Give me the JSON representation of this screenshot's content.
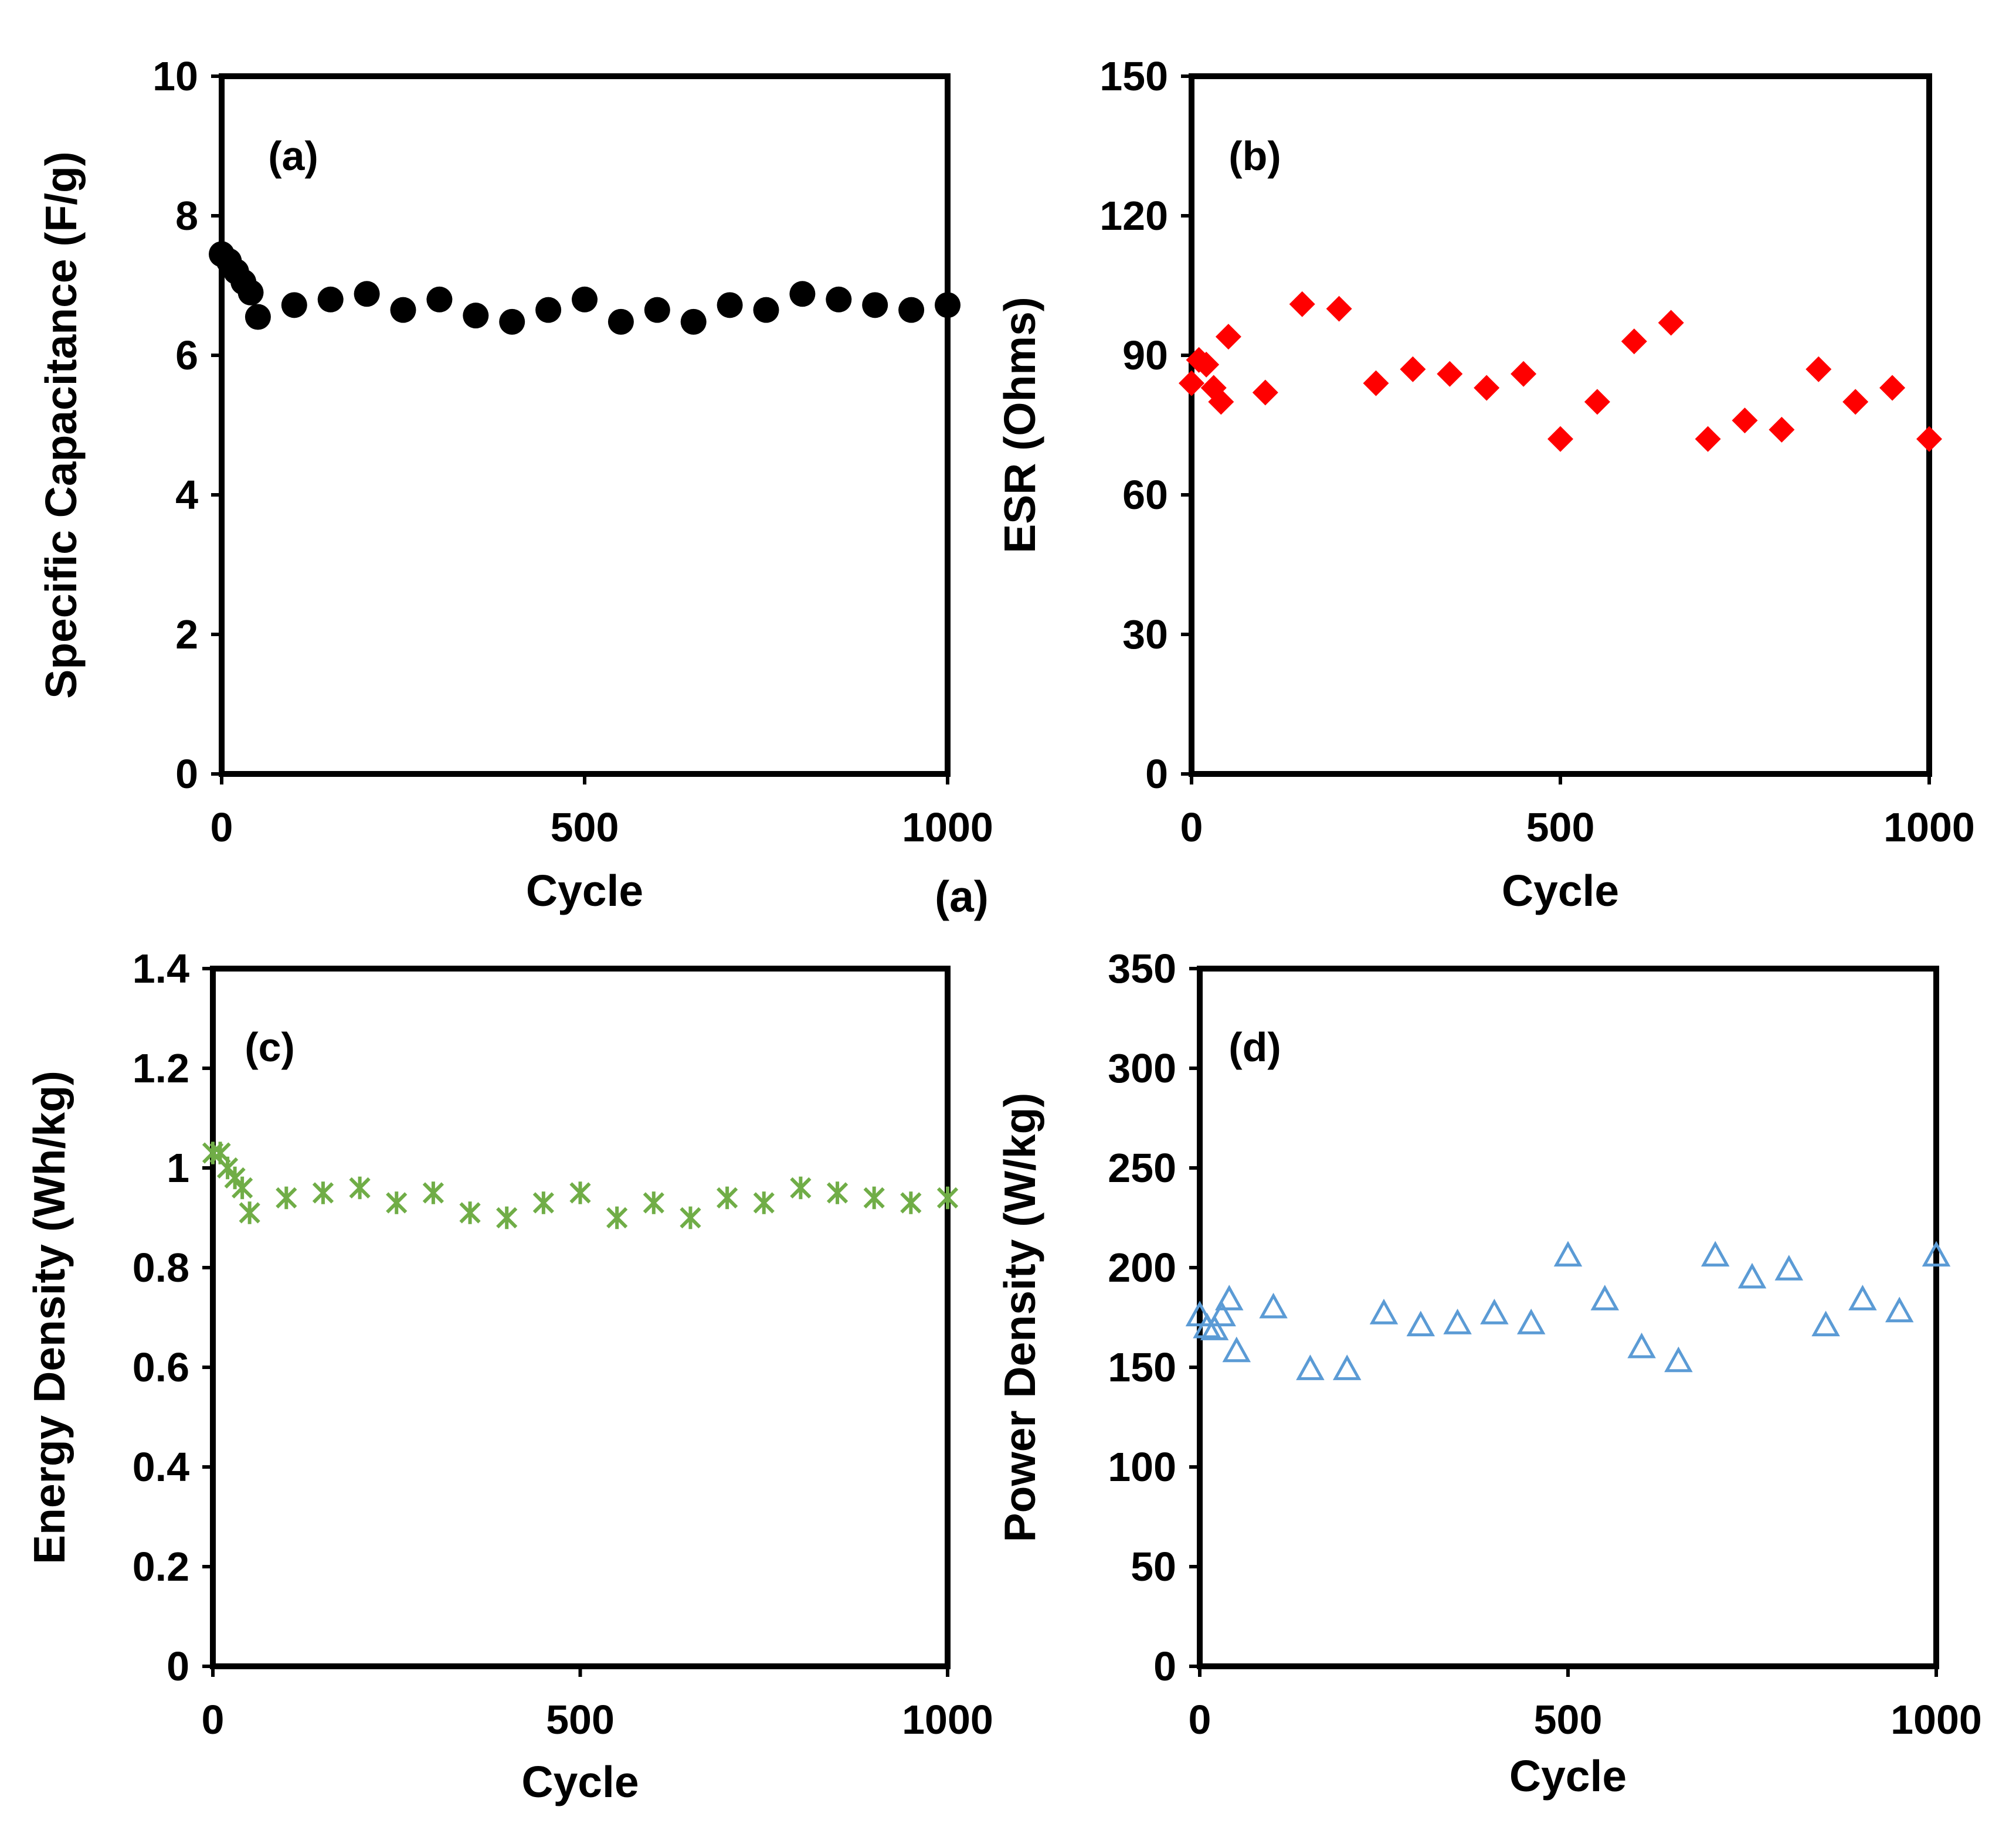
{
  "figure_label": "(a)",
  "chart_data": [
    {
      "id": "a",
      "type": "scatter",
      "panel_label": "(a)",
      "xlabel": "Cycle",
      "ylabel": "Specific Capacitance (F/g)",
      "xlim": [
        0,
        1000
      ],
      "ylim": [
        0,
        10
      ],
      "xticks": [
        0,
        500,
        1000
      ],
      "yticks": [
        0,
        2,
        4,
        6,
        8,
        10
      ],
      "ytick_labels": [
        "0",
        "2",
        "4",
        "6",
        "8",
        "10"
      ],
      "marker": "circle",
      "color": "#000000",
      "x": [
        0,
        10,
        20,
        30,
        40,
        50,
        100,
        150,
        200,
        250,
        300,
        350,
        400,
        450,
        500,
        550,
        600,
        650,
        700,
        750,
        800,
        850,
        900,
        950,
        1000
      ],
      "y": [
        7.45,
        7.35,
        7.2,
        7.05,
        6.9,
        6.55,
        6.72,
        6.8,
        6.88,
        6.65,
        6.8,
        6.57,
        6.48,
        6.65,
        6.8,
        6.48,
        6.65,
        6.48,
        6.72,
        6.65,
        6.88,
        6.8,
        6.72,
        6.65,
        6.72
      ]
    },
    {
      "id": "b",
      "type": "scatter",
      "panel_label": "(b)",
      "xlabel": "Cycle",
      "ylabel": "ESR (Ohms)",
      "xlim": [
        0,
        1000
      ],
      "ylim": [
        0,
        150
      ],
      "xticks": [
        0,
        500,
        1000
      ],
      "yticks": [
        0,
        30,
        60,
        90,
        120,
        150
      ],
      "ytick_labels": [
        "0",
        "30",
        "60",
        "90",
        "120",
        "150"
      ],
      "marker": "diamond",
      "color": "#ff0000",
      "x": [
        0,
        10,
        20,
        30,
        40,
        50,
        100,
        150,
        200,
        250,
        300,
        350,
        400,
        450,
        500,
        550,
        600,
        650,
        700,
        750,
        800,
        850,
        900,
        950,
        1000
      ],
      "y": [
        84,
        89,
        88,
        83,
        80,
        94,
        82,
        101,
        100,
        84,
        87,
        86,
        83,
        86,
        72,
        80,
        93,
        97,
        72,
        76,
        74,
        87,
        80,
        83,
        72
      ]
    },
    {
      "id": "c",
      "type": "scatter",
      "panel_label": "(c)",
      "xlabel": "Cycle",
      "ylabel": "Energy Density (Wh/kg)",
      "xlim": [
        0,
        1000
      ],
      "ylim": [
        0,
        1.4
      ],
      "xticks": [
        0,
        500,
        1000
      ],
      "yticks": [
        0,
        0.2,
        0.4,
        0.6,
        0.8,
        1.0,
        1.2,
        1.4
      ],
      "ytick_labels": [
        "0",
        "0.2",
        "0.4",
        "0.6",
        "0.8",
        "1",
        "1.2",
        "1.4"
      ],
      "marker": "star-cross",
      "color": "#70ad47",
      "x": [
        0,
        10,
        20,
        30,
        40,
        50,
        100,
        150,
        200,
        250,
        300,
        350,
        400,
        450,
        500,
        550,
        600,
        650,
        700,
        750,
        800,
        850,
        900,
        950,
        1000
      ],
      "y": [
        1.03,
        1.03,
        1.0,
        0.98,
        0.96,
        0.91,
        0.94,
        0.95,
        0.96,
        0.93,
        0.95,
        0.91,
        0.9,
        0.93,
        0.95,
        0.9,
        0.93,
        0.9,
        0.94,
        0.93,
        0.96,
        0.95,
        0.94,
        0.93,
        0.94
      ]
    },
    {
      "id": "d",
      "type": "scatter",
      "panel_label": "(d)",
      "xlabel": "Cycle",
      "ylabel": "Power Density (W/kg)",
      "xlim": [
        0,
        1000
      ],
      "ylim": [
        0,
        350
      ],
      "xticks": [
        0,
        500,
        1000
      ],
      "yticks": [
        0,
        50,
        100,
        150,
        200,
        250,
        300,
        350
      ],
      "ytick_labels": [
        "0",
        "50",
        "100",
        "150",
        "200",
        "250",
        "300",
        "350"
      ],
      "marker": "triangle-open",
      "color": "#5b9bd5",
      "x": [
        0,
        10,
        20,
        30,
        40,
        50,
        100,
        150,
        200,
        250,
        300,
        350,
        400,
        450,
        500,
        550,
        600,
        650,
        700,
        750,
        800,
        850,
        900,
        950,
        1000
      ],
      "y": [
        176,
        170,
        169,
        176,
        184,
        158,
        180,
        149,
        149,
        177,
        171,
        172,
        177,
        172,
        206,
        184,
        160,
        153,
        206,
        195,
        199,
        171,
        184,
        178,
        206
      ]
    }
  ]
}
